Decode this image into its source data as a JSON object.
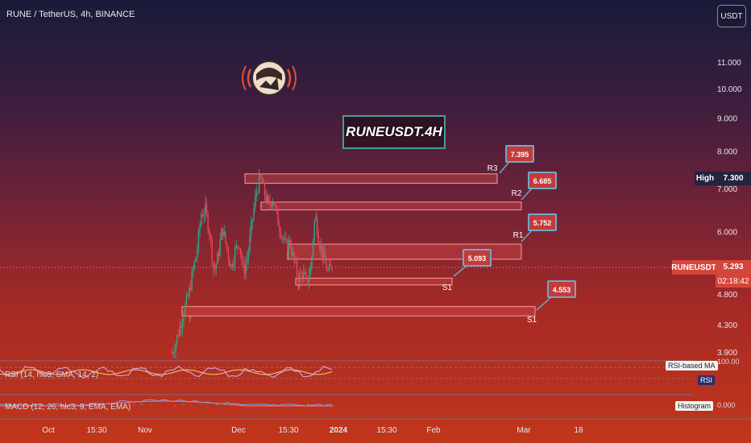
{
  "header": {
    "symbol_title": "RUNE / TetherUS, 4h, BINANCE",
    "currency_button": "USDT"
  },
  "annotation_title": "RUNEUSDT.4H",
  "price_axis": {
    "ticks": [
      "11.000",
      "10.000",
      "9.000",
      "8.000",
      "7.000",
      "6.000",
      "4.800",
      "4.300",
      "3.900"
    ],
    "high_label": "High",
    "high_value": "7.300",
    "current_symbol": "RUNEUSDT",
    "current_price": "5.293",
    "countdown": "02:18:42"
  },
  "time_axis": {
    "ticks": [
      "Oct",
      "15:30",
      "Nov",
      "Dec",
      "15:30",
      "2024",
      "15:30",
      "Feb",
      "Mar",
      "18"
    ]
  },
  "levels": [
    {
      "name": "R3",
      "value": 7.395,
      "value_label": "7.395"
    },
    {
      "name": "R2",
      "value": 6.685,
      "value_label": "6.685"
    },
    {
      "name": "R1",
      "value": 5.752,
      "value_label": "5.752"
    },
    {
      "name": "S1",
      "value": 5.093,
      "value_label": "5.093"
    },
    {
      "name": "S1",
      "value": 4.553,
      "value_label": "4.553"
    }
  ],
  "rsi_pane": {
    "label": "RSI (14, hlc3, SMA, 14, 2)",
    "legend_ma": "RSI-based MA",
    "legend_rsi": "RSI",
    "axis_value": "100.00"
  },
  "macd_pane": {
    "label": "MACD (12, 26, hlc3, 9, EMA, EMA)",
    "legend_hist": "Histogram",
    "axis_value": "0.000"
  },
  "colors": {
    "up": "#2ea889",
    "down": "#e8465a",
    "zone_fill": "#c04040",
    "callout_fill": "#c53a3a",
    "callout_border": "#6fa8c8"
  },
  "chart_data": {
    "type": "candlestick",
    "title": "RUNEUSDT.4H",
    "y_scale": "log",
    "ylim": [
      3.85,
      12.0
    ],
    "x_ticks": [
      "Oct",
      "15:30",
      "Nov",
      "Dec",
      "15:30",
      "2024",
      "15:30",
      "Feb",
      "Mar",
      "18"
    ],
    "price_path": [
      3.9,
      4.05,
      4.3,
      4.55,
      4.8,
      5.2,
      5.6,
      6.4,
      6.5,
      6.0,
      5.2,
      5.5,
      6.1,
      5.7,
      5.3,
      5.6,
      5.8,
      5.2,
      5.5,
      6.2,
      6.9,
      7.3,
      6.9,
      6.6,
      6.8,
      6.3,
      6.0,
      5.7,
      5.8,
      5.4,
      5.1,
      5.2,
      5.0,
      5.3,
      6.4,
      5.8,
      5.5,
      5.2,
      5.3
    ],
    "high": 7.3,
    "last": 5.293
  }
}
